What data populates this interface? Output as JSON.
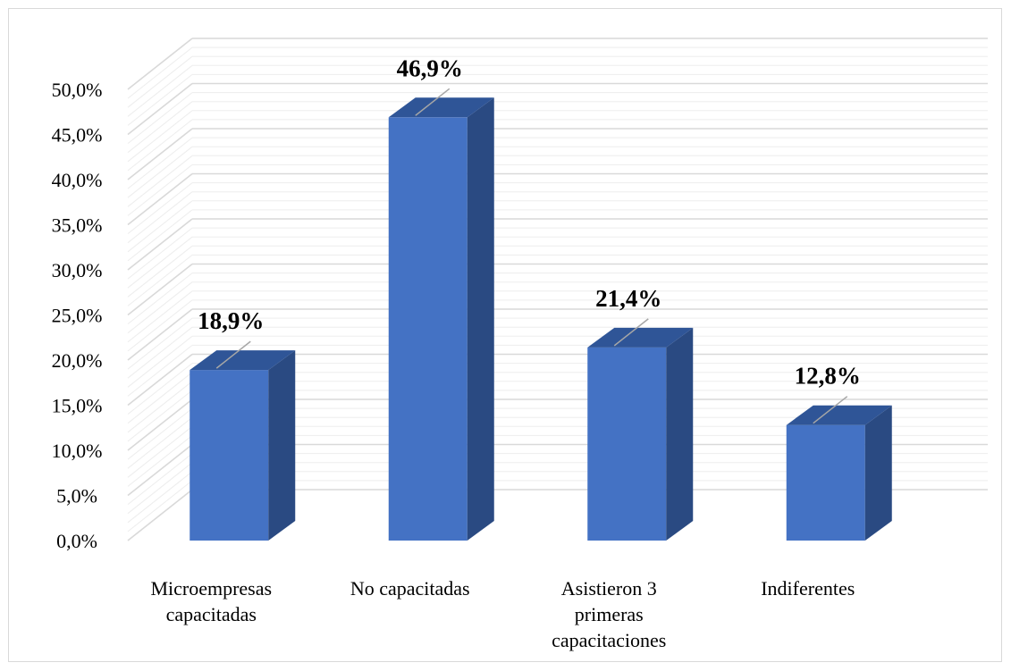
{
  "chart_data": {
    "type": "bar",
    "style": "3d-column",
    "categories": [
      [
        "Microempresas",
        "capacitadas"
      ],
      [
        "No capacitadas"
      ],
      [
        "Asistieron 3",
        "primeras",
        "capacitaciones"
      ],
      [
        "Indiferentes"
      ]
    ],
    "values": [
      18.9,
      46.9,
      21.4,
      12.8
    ],
    "data_labels": [
      "18,9%",
      "46,9%",
      "21,4%",
      "12,8%"
    ],
    "y_tick_labels": [
      "0,0%",
      "5,0%",
      "10,0%",
      "15,0%",
      "20,0%",
      "25,0%",
      "30,0%",
      "35,0%",
      "40,0%",
      "45,0%",
      "50,0%"
    ],
    "ylim": [
      0,
      50
    ],
    "y_major_step": 5,
    "y_minor_step": 1,
    "grid": true,
    "legend": "none",
    "title": "",
    "xlabel": "",
    "ylabel": "",
    "colors": {
      "bar_front": "#4472c4",
      "bar_top": "#2f5597",
      "bar_side": "#2a4a82",
      "major_grid": "#d9d9d9",
      "minor_grid": "#ededed",
      "leader_line": "#a6a6a6"
    }
  }
}
